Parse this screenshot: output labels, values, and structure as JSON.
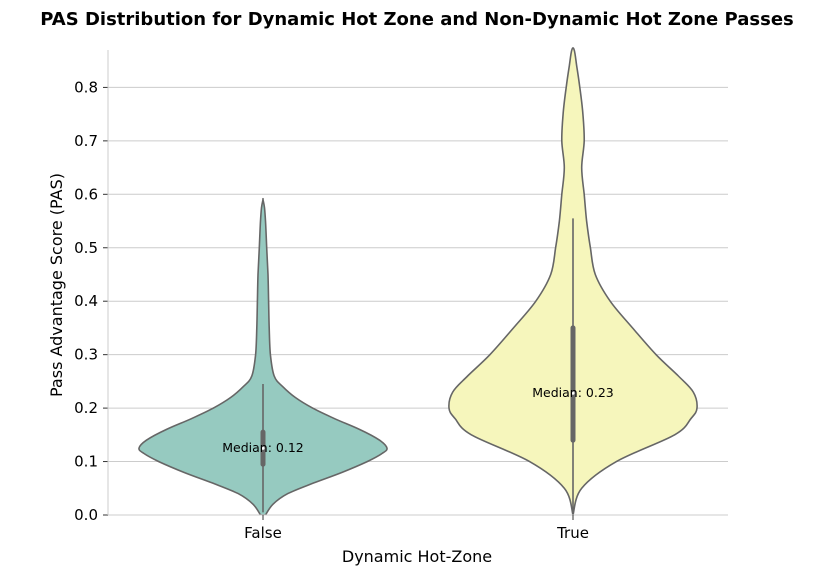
{
  "chart_data": {
    "type": "violin",
    "title": "PAS Distribution for Dynamic Hot Zone and Non-Dynamic Hot Zone Passes",
    "xlabel": "Dynamic Hot-Zone",
    "ylabel": "Pass Advantage Score (PAS)",
    "ylim": [
      0,
      0.87
    ],
    "yticks": [
      "0.0",
      "0.1",
      "0.2",
      "0.3",
      "0.4",
      "0.5",
      "0.6",
      "0.7",
      "0.8"
    ],
    "grid": true,
    "categories": [
      "False",
      "True"
    ],
    "colors": [
      "#96cac0",
      "#f6f6bc"
    ],
    "outline_color": "#666666",
    "violins": [
      {
        "category": "False",
        "median": 0.125,
        "q1": 0.095,
        "q3": 0.155,
        "whisker_low": 0.005,
        "whisker_high": 0.245,
        "annotation": "Median: 0.12",
        "profile": [
          [
            0.0,
            0.02
          ],
          [
            0.02,
            0.08
          ],
          [
            0.04,
            0.2
          ],
          [
            0.06,
            0.41
          ],
          [
            0.08,
            0.64
          ],
          [
            0.1,
            0.84
          ],
          [
            0.115,
            0.96
          ],
          [
            0.125,
            1.0
          ],
          [
            0.14,
            0.94
          ],
          [
            0.16,
            0.78
          ],
          [
            0.18,
            0.58
          ],
          [
            0.2,
            0.4
          ],
          [
            0.22,
            0.26
          ],
          [
            0.24,
            0.16
          ],
          [
            0.26,
            0.09
          ],
          [
            0.3,
            0.06
          ],
          [
            0.35,
            0.05
          ],
          [
            0.4,
            0.045
          ],
          [
            0.45,
            0.04
          ],
          [
            0.5,
            0.03
          ],
          [
            0.55,
            0.02
          ],
          [
            0.575,
            0.012
          ],
          [
            0.59,
            0.0
          ]
        ]
      },
      {
        "category": "True",
        "median": 0.228,
        "q1": 0.14,
        "q3": 0.35,
        "whisker_low": 0.0,
        "whisker_high": 0.555,
        "annotation": "Median: 0.23",
        "profile": [
          [
            0.0,
            0.0
          ],
          [
            0.05,
            0.07
          ],
          [
            0.1,
            0.35
          ],
          [
            0.15,
            0.82
          ],
          [
            0.18,
            0.95
          ],
          [
            0.2,
            1.0
          ],
          [
            0.23,
            0.97
          ],
          [
            0.26,
            0.85
          ],
          [
            0.3,
            0.67
          ],
          [
            0.35,
            0.48
          ],
          [
            0.4,
            0.3
          ],
          [
            0.45,
            0.18
          ],
          [
            0.5,
            0.14
          ],
          [
            0.55,
            0.11
          ],
          [
            0.6,
            0.09
          ],
          [
            0.65,
            0.07
          ],
          [
            0.7,
            0.09
          ],
          [
            0.75,
            0.08
          ],
          [
            0.8,
            0.055
          ],
          [
            0.84,
            0.03
          ],
          [
            0.87,
            0.01
          ]
        ]
      }
    ]
  }
}
